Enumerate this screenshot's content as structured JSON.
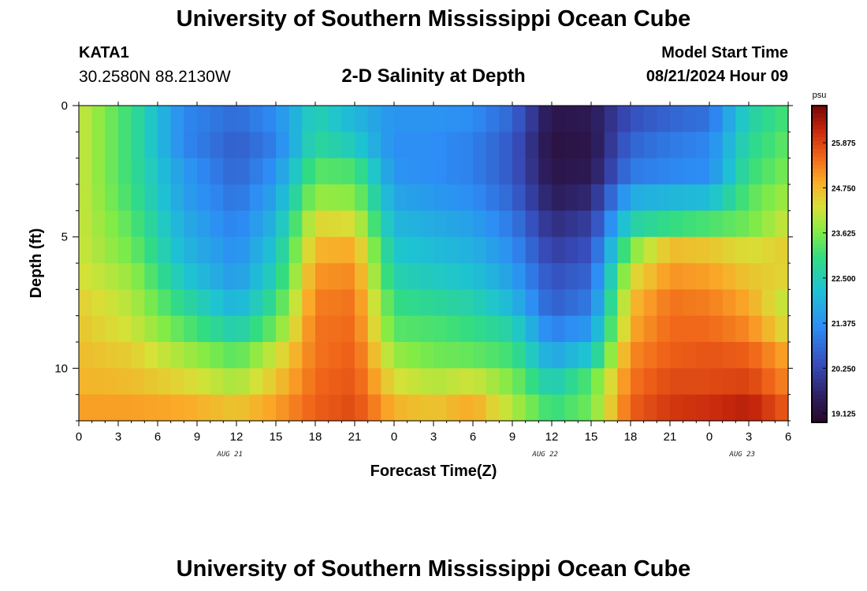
{
  "header": {
    "title": "University of Southern Mississippi Ocean Cube",
    "station": "KATA1",
    "coordinates": "30.2580N  88.2130W",
    "subtitle": "2-D Salinity at Depth",
    "model_start_label": "Model Start Time",
    "model_start_value": "08/21/2024 Hour 09"
  },
  "footer": {
    "title": "University of Southern Mississippi Ocean Cube"
  },
  "chart_data": {
    "type": "heatmap",
    "title": "2-D Salinity at Depth",
    "xlabel": "Forecast Time(Z)",
    "ylabel": "Depth (ft)",
    "x_tick_labels": [
      "0",
      "3",
      "6",
      "9",
      "12",
      "15",
      "18",
      "21",
      "0",
      "3",
      "6",
      "9",
      "12",
      "15",
      "18",
      "21",
      "0",
      "3",
      "6"
    ],
    "x_range_hours": [
      0,
      54
    ],
    "date_labels": [
      {
        "label": "AUG 21",
        "hour": 11.5
      },
      {
        "label": "AUG 22",
        "hour": 35.5
      },
      {
        "label": "AUG 23",
        "hour": 50.5
      }
    ],
    "y_ticks": [
      0,
      5,
      10
    ],
    "y_tick_labels": [
      "0",
      "5",
      "10"
    ],
    "ylim": [
      0,
      12
    ],
    "colorbar": {
      "unit": "psu",
      "min": 18.9,
      "max": 26.8,
      "ticks": [
        19.125,
        20.25,
        21.375,
        22.5,
        23.625,
        24.75,
        25.875
      ],
      "tick_labels": [
        "19.125",
        "20.250",
        "21.375",
        "22.500",
        "23.625",
        "24.750",
        "25.875"
      ]
    },
    "grid": false,
    "depth_levels_ft": [
      0.5,
      1.5,
      2.5,
      3.5,
      4.5,
      5.5,
      6.5,
      7.5,
      8.5,
      9.5,
      10.5,
      11.5
    ],
    "keyframe_hours": [
      0,
      4,
      8,
      12,
      15,
      18,
      21,
      24,
      27,
      30,
      33,
      36,
      39,
      42,
      45,
      48,
      51,
      54
    ],
    "salinity_psu": [
      [
        24.2,
        23.0,
        21.2,
        20.8,
        21.3,
        22.6,
        22.0,
        21.4,
        21.4,
        21.3,
        20.7,
        19.3,
        19.4,
        20.4,
        20.7,
        20.9,
        22.6,
        23.2
      ],
      [
        24.2,
        23.0,
        21.2,
        20.6,
        21.1,
        22.8,
        22.4,
        21.3,
        21.3,
        21.1,
        20.5,
        19.2,
        19.3,
        20.7,
        21.0,
        21.2,
        22.8,
        23.4
      ],
      [
        24.2,
        23.0,
        21.5,
        20.7,
        21.4,
        23.3,
        23.2,
        21.4,
        21.3,
        21.1,
        20.5,
        19.3,
        19.4,
        21.0,
        21.2,
        21.3,
        23.0,
        23.6
      ],
      [
        24.2,
        23.1,
        21.6,
        20.9,
        21.7,
        23.8,
        23.7,
        21.7,
        21.5,
        21.3,
        20.7,
        19.5,
        19.7,
        21.8,
        22.0,
        22.1,
        23.3,
        23.9
      ],
      [
        24.2,
        23.3,
        21.8,
        21.1,
        22.0,
        24.4,
        24.3,
        22.0,
        21.8,
        21.6,
        21.0,
        19.8,
        20.1,
        22.6,
        23.0,
        23.2,
        23.5,
        24.2
      ],
      [
        24.2,
        23.5,
        22.0,
        21.3,
        22.3,
        24.8,
        24.9,
        22.3,
        22.1,
        21.9,
        21.3,
        20.1,
        20.4,
        23.6,
        24.7,
        24.6,
        24.3,
        24.5
      ],
      [
        24.3,
        23.8,
        22.3,
        21.5,
        22.6,
        25.1,
        25.2,
        22.6,
        22.4,
        22.2,
        21.6,
        20.4,
        20.7,
        24.3,
        25.1,
        25.0,
        24.6,
        24.4
      ],
      [
        24.5,
        24.0,
        22.8,
        21.9,
        23.0,
        25.3,
        25.4,
        23.0,
        22.8,
        22.6,
        22.0,
        20.6,
        21.0,
        24.7,
        25.4,
        25.3,
        24.9,
        24.0
      ],
      [
        24.6,
        24.2,
        23.3,
        22.5,
        23.5,
        25.4,
        25.5,
        23.3,
        23.2,
        23.0,
        22.6,
        21.1,
        21.5,
        24.9,
        25.5,
        25.5,
        25.2,
        24.3
      ],
      [
        24.7,
        24.5,
        23.9,
        23.3,
        24.2,
        25.4,
        25.6,
        23.8,
        23.5,
        23.4,
        23.1,
        21.7,
        22.3,
        25.2,
        25.6,
        25.7,
        25.6,
        24.9
      ],
      [
        24.8,
        24.7,
        24.4,
        23.9,
        24.6,
        25.5,
        25.7,
        24.3,
        24.0,
        24.2,
        23.6,
        22.4,
        23.3,
        25.4,
        25.8,
        25.8,
        25.9,
        25.2
      ],
      [
        25.0,
        25.0,
        24.9,
        24.6,
        25.0,
        25.6,
        25.8,
        24.8,
        24.6,
        24.9,
        24.0,
        23.0,
        23.5,
        25.6,
        26.0,
        26.1,
        26.3,
        25.6
      ]
    ]
  }
}
